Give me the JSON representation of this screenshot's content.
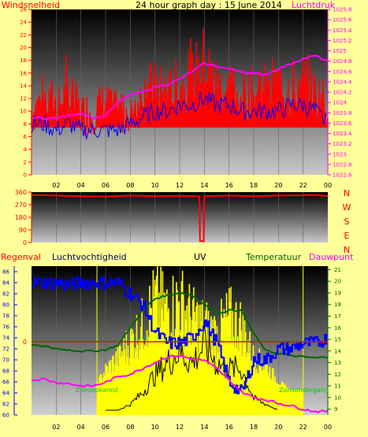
{
  "header": {
    "left_label": "Windsnelheid",
    "title": "24 hour graph day : 15 June 2014",
    "right_label": "Luchtdruk"
  },
  "colors": {
    "wind": "#ff0000",
    "wind_avg": "#0000ff",
    "pressure": "#ff00ff",
    "direction": "#ff0000",
    "humidity": "#0000ff",
    "uv": "#ffff00",
    "temperature": "#006600",
    "dewpoint": "#ff00ff",
    "rain": "#ff0000",
    "solar": "#000000",
    "background": "#ffff99"
  },
  "chart_data": [
    {
      "type": "line",
      "name": "wind-pressure",
      "xlabels": [
        "02",
        "04",
        "06",
        "08",
        "10",
        "12",
        "14",
        "16",
        "18",
        "20",
        "22",
        "00"
      ],
      "y_left_ticks": [
        0,
        2,
        4,
        6,
        8,
        10,
        12,
        14,
        16,
        18,
        20,
        22,
        24,
        26
      ],
      "y_left_tick_labels": [
        "0",
        "2",
        "4",
        "6",
        "8",
        "10",
        "12",
        "14",
        "16",
        "18",
        "20",
        "22",
        "24",
        "26"
      ],
      "ylim_left": [
        0,
        26
      ],
      "y_right_ticks": [
        1022.6,
        1022.8,
        1023,
        1023.2,
        1023.4,
        1023.6,
        1023.8,
        1024,
        1024.2,
        1024.4,
        1024.6,
        1024.8,
        1025,
        1025.2,
        1025.4,
        1025.6,
        1025.8
      ],
      "y_right_tick_labels": [
        "1022.6",
        "1022.8",
        "1023",
        "1023.2",
        "1023.4",
        "1023.6",
        "1023.8",
        "1024",
        "1024.2",
        "1024.4",
        "1024.6",
        "1024.8",
        "1025",
        "1025.2",
        "1025.4",
        "1025.6",
        "1025.8"
      ],
      "ylim_right": [
        1022.6,
        1025.8
      ],
      "xlim": [
        0,
        24
      ],
      "x": [
        0,
        1,
        2,
        3,
        4,
        5,
        6,
        7,
        8,
        9,
        10,
        11,
        12,
        13,
        14,
        15,
        16,
        17,
        18,
        19,
        20,
        21,
        22,
        23,
        24
      ],
      "wind_gust": [
        14,
        16,
        15,
        17,
        13,
        14,
        15,
        13,
        15,
        16,
        18,
        17,
        19,
        20,
        24,
        19,
        18,
        17,
        17,
        18,
        19,
        18,
        19,
        17,
        15
      ],
      "wind_avg": [
        8,
        8,
        7,
        8,
        7,
        7,
        7,
        7,
        8,
        9,
        10,
        10,
        11,
        11,
        12,
        11,
        11,
        10,
        10,
        10,
        10,
        11,
        11,
        10,
        8
      ],
      "pressure": [
        1023.7,
        1023.7,
        1023.7,
        1023.75,
        1023.8,
        1023.7,
        1023.75,
        1024.0,
        1024.15,
        1024.2,
        1024.3,
        1024.35,
        1024.45,
        1024.6,
        1024.75,
        1024.7,
        1024.65,
        1024.6,
        1024.55,
        1024.55,
        1024.65,
        1024.75,
        1024.85,
        1024.9,
        1024.8
      ],
      "series": [
        {
          "name": "Windsnelheid",
          "values_key": "wind_gust"
        },
        {
          "name": "Luchtdruk",
          "values_key": "pressure"
        }
      ]
    },
    {
      "type": "line",
      "name": "wind-direction",
      "y_ticks": [
        0,
        90,
        180,
        270,
        360
      ],
      "y_tick_labels": [
        "0",
        "90",
        "180",
        "270",
        "360"
      ],
      "ylim": [
        0,
        360
      ],
      "right_labels": [
        "N",
        "W",
        "S",
        "E",
        "N"
      ],
      "xlim": [
        0,
        24
      ],
      "x": [
        0,
        2,
        4,
        6,
        8,
        10,
        12,
        13.6,
        13.65,
        13.95,
        14,
        16,
        18,
        20,
        22,
        23,
        24
      ],
      "values": [
        340,
        335,
        330,
        328,
        335,
        330,
        333,
        330,
        10,
        10,
        330,
        335,
        330,
        335,
        338,
        340,
        332
      ],
      "series": [
        {
          "name": "wind-direction",
          "values_key": "values"
        }
      ]
    },
    {
      "type": "line",
      "name": "humidity-uv-temperature",
      "header_labels": [
        "Regenval",
        "Luchtvochtigheid",
        "UV",
        "Temperatuur",
        "Dauwpunt"
      ],
      "xlabels": [
        "02",
        "04",
        "06",
        "08",
        "10",
        "12",
        "14",
        "16",
        "18",
        "20",
        "22",
        "00"
      ],
      "y_left_ticks": [
        60,
        62,
        64,
        66,
        68,
        70,
        72,
        74,
        76,
        78,
        80,
        82,
        84,
        86
      ],
      "y_left_tick_labels": [
        "60",
        "62",
        "64",
        "66",
        "68",
        "70",
        "72",
        "74",
        "76",
        "78",
        "80",
        "82",
        "84",
        "86"
      ],
      "ylim_left": [
        60,
        87
      ],
      "y_right_ticks": [
        9,
        10,
        11,
        12,
        13,
        14,
        15,
        16,
        17,
        18,
        19,
        20,
        21
      ],
      "y_right_tick_labels": [
        "9",
        "10",
        "11",
        "12",
        "13",
        "14",
        "15",
        "16",
        "17",
        "18",
        "19",
        "20",
        "21"
      ],
      "ylim_right": [
        8.5,
        21.3
      ],
      "rain_value": 0,
      "rain_label": "0",
      "sunrise_label": "Zonsopkomst",
      "sunset_label": "Zonsondergang",
      "sunrise_hour": 5.3,
      "sunset_hour": 22.0,
      "xlim": [
        0,
        24
      ],
      "x": [
        0,
        1,
        2,
        3,
        4,
        5,
        6,
        7,
        8,
        9,
        10,
        11,
        12,
        13,
        14,
        15,
        16,
        17,
        18,
        19,
        20,
        21,
        22,
        23,
        24
      ],
      "humidity": [
        84,
        84,
        84,
        83.5,
        84,
        84,
        84,
        84,
        82,
        80,
        75,
        73,
        73,
        74,
        77,
        73,
        66,
        64,
        70,
        70,
        72,
        72,
        73,
        73,
        74
      ],
      "temperature": [
        14.5,
        14.4,
        14.2,
        14.1,
        14,
        14,
        14.1,
        14.5,
        16,
        17.5,
        18.5,
        18.8,
        19,
        18.8,
        18,
        17.2,
        17.5,
        17.5,
        15.5,
        14,
        13.8,
        13.6,
        13.5,
        13.4,
        13.5
      ],
      "dewpoint": [
        11.5,
        11.6,
        11.3,
        11.2,
        11.0,
        11.0,
        11.3,
        11.8,
        12.0,
        12.5,
        13.0,
        13.5,
        13.6,
        13.3,
        13.2,
        12.5,
        11.5,
        10.5,
        10.0,
        9.8,
        9.5,
        9.3,
        9.0,
        8.8,
        8.8
      ],
      "uv_level": [
        0,
        0,
        0,
        0,
        0,
        0,
        1.2,
        2.0,
        3.0,
        4.0,
        5.5,
        5.0,
        5.5,
        4.5,
        4.0,
        3.5,
        4.5,
        4.0,
        2.0,
        1.5,
        0.5,
        0,
        0,
        0,
        0
      ],
      "solar": [
        0,
        0,
        0,
        0,
        0,
        0,
        0,
        0,
        0.5,
        1.5,
        3.0,
        4.0,
        5.0,
        4.0,
        5.5,
        4.0,
        3.5,
        3.5,
        1.0,
        0.5,
        0,
        0,
        0,
        0,
        0
      ],
      "series": [
        {
          "name": "Luchtvochtigheid",
          "values_key": "humidity"
        },
        {
          "name": "Temperatuur",
          "values_key": "temperature"
        },
        {
          "name": "Dauwpunt",
          "values_key": "dewpoint"
        },
        {
          "name": "UV",
          "values_key": "uv_level"
        }
      ]
    }
  ]
}
